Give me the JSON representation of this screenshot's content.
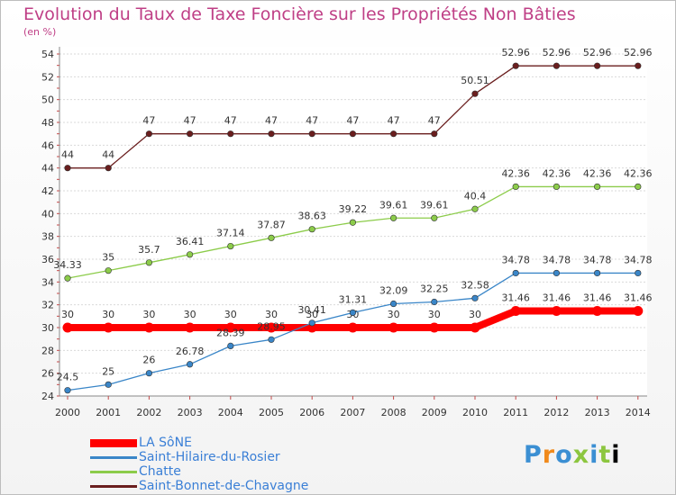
{
  "title": "Evolution du Taux de Taxe Foncière sur les Propriétés Non Bâties",
  "subtitle": "(en %)",
  "logo": [
    "P",
    "r",
    "o",
    "x",
    "i",
    "t",
    "i"
  ],
  "colors": {
    "la_sone": "#ff0000",
    "saint_hilaire": "#3a86c8",
    "chatte": "#8ccc4a",
    "saint_bonnet": "#6a1e1e"
  },
  "chart_data": {
    "type": "line",
    "title": "Evolution du Taux de Taxe Foncière sur les Propriétés Non Bâties",
    "ylabel": "(en %)",
    "xlabel": "",
    "x": [
      "2000",
      "2001",
      "2002",
      "2003",
      "2004",
      "2005",
      "2006",
      "2007",
      "2008",
      "2009",
      "2010",
      "2011",
      "2012",
      "2013",
      "2014"
    ],
    "ylim": [
      24,
      54
    ],
    "yticks": [
      24,
      26,
      28,
      30,
      32,
      34,
      36,
      38,
      40,
      42,
      44,
      46,
      48,
      50,
      52,
      54
    ],
    "grid": "horizontal",
    "legend_position": "bottom-left",
    "series": [
      {
        "name": "LA SôNE",
        "color": "#ff0000",
        "values": [
          30,
          30,
          30,
          30,
          30,
          30,
          30,
          30,
          30,
          30,
          30,
          31.46,
          31.46,
          31.46,
          31.46
        ],
        "labels": [
          "30",
          "30",
          "30",
          "30",
          "30",
          "30",
          "30",
          "30",
          "30",
          "30",
          "30",
          "31.46",
          "31.46",
          "31.46",
          "31.46"
        ]
      },
      {
        "name": "Saint-Hilaire-du-Rosier",
        "color": "#3a86c8",
        "values": [
          24.5,
          25,
          26,
          26.78,
          28.39,
          28.95,
          30.41,
          31.31,
          32.09,
          32.25,
          32.58,
          34.78,
          34.78,
          34.78,
          34.78
        ],
        "labels": [
          "24.5",
          "25",
          "26",
          "26.78",
          "28.39",
          "28.95",
          "30.41",
          "31.31",
          "32.09",
          "32.25",
          "32.58",
          "34.78",
          "34.78",
          "34.78",
          "34.78"
        ]
      },
      {
        "name": "Chatte",
        "color": "#8ccc4a",
        "values": [
          34.33,
          35,
          35.7,
          36.41,
          37.14,
          37.87,
          38.63,
          39.22,
          39.61,
          39.61,
          40.4,
          42.36,
          42.36,
          42.36,
          42.36
        ],
        "labels": [
          "34.33",
          "35",
          "35.7",
          "36.41",
          "37.14",
          "37.87",
          "38.63",
          "39.22",
          "39.61",
          "39.61",
          "40.4",
          "42.36",
          "42.36",
          "42.36",
          "42.36"
        ]
      },
      {
        "name": "Saint-Bonnet-de-Chavagne",
        "color": "#6a1e1e",
        "values": [
          44,
          44,
          47,
          47,
          47,
          47,
          47,
          47,
          47,
          47,
          50.51,
          52.96,
          52.96,
          52.96,
          52.96
        ],
        "labels": [
          "44",
          "44",
          "47",
          "47",
          "47",
          "47",
          "47",
          "47",
          "47",
          "47",
          "50.51",
          "52.96",
          "52.96",
          "52.96",
          "52.96"
        ]
      }
    ]
  }
}
